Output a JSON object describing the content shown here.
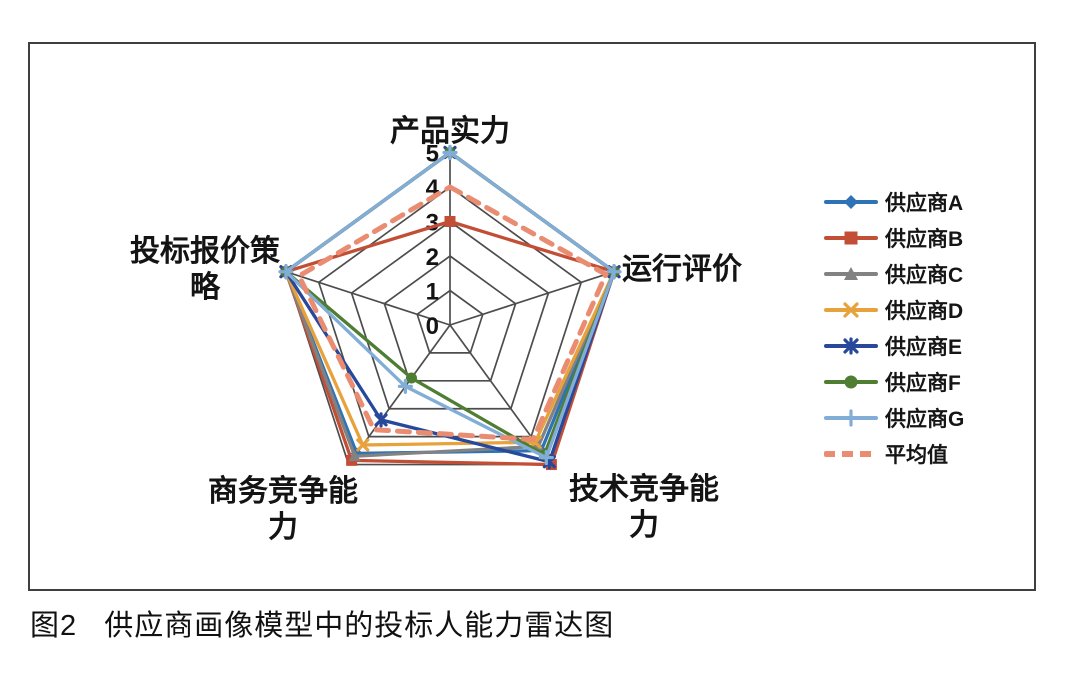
{
  "caption": "图2   供应商画像模型中的投标人能力雷达图",
  "chart_data": {
    "type": "radar",
    "title": "",
    "categories": [
      "产品实力",
      "运行评价",
      "技术竞争能力",
      "商务竞争能力",
      "投标报价策略"
    ],
    "axis_labels_display": [
      "产品实力",
      "运行评价",
      "技术竞争能\n力",
      "商务竞争能\n力",
      "投标报价策\n略"
    ],
    "ticks": [
      "0",
      "1",
      "2",
      "3",
      "4",
      "5"
    ],
    "scale_min": 0,
    "scale_max": 5,
    "grid": true,
    "grid_color": "#4d4d4d",
    "legend_position": "right",
    "series": [
      {
        "name": "供应商A",
        "color": "#2e73b5",
        "marker": "diamond",
        "dash": false,
        "values": [
          5,
          5,
          4.5,
          4.6,
          5
        ]
      },
      {
        "name": "供应商B",
        "color": "#c24f35",
        "marker": "square",
        "dash": false,
        "values": [
          3,
          5,
          5,
          4.85,
          5
        ]
      },
      {
        "name": "供应商C",
        "color": "#828282",
        "marker": "triangle",
        "dash": false,
        "values": [
          5,
          5,
          4.35,
          4.7,
          5
        ]
      },
      {
        "name": "供应商D",
        "color": "#e8a23c",
        "marker": "x",
        "dash": false,
        "values": [
          5,
          5,
          4.2,
          4.3,
          5
        ]
      },
      {
        "name": "供应商E",
        "color": "#27489b",
        "marker": "asterisk",
        "dash": false,
        "values": [
          5,
          5,
          4.9,
          3.4,
          5
        ]
      },
      {
        "name": "供应商F",
        "color": "#4f7e33",
        "marker": "circle",
        "dash": false,
        "values": [
          5,
          5,
          4.65,
          1.9,
          5
        ]
      },
      {
        "name": "供应商G",
        "color": "#82add6",
        "marker": "plus",
        "dash": false,
        "values": [
          5,
          5,
          4.75,
          2.2,
          5
        ]
      },
      {
        "name": "平均值",
        "color": "#e98c71",
        "marker": "none",
        "dash": true,
        "values": [
          4,
          4.75,
          4.1,
          3.75,
          4.6
        ]
      }
    ]
  }
}
